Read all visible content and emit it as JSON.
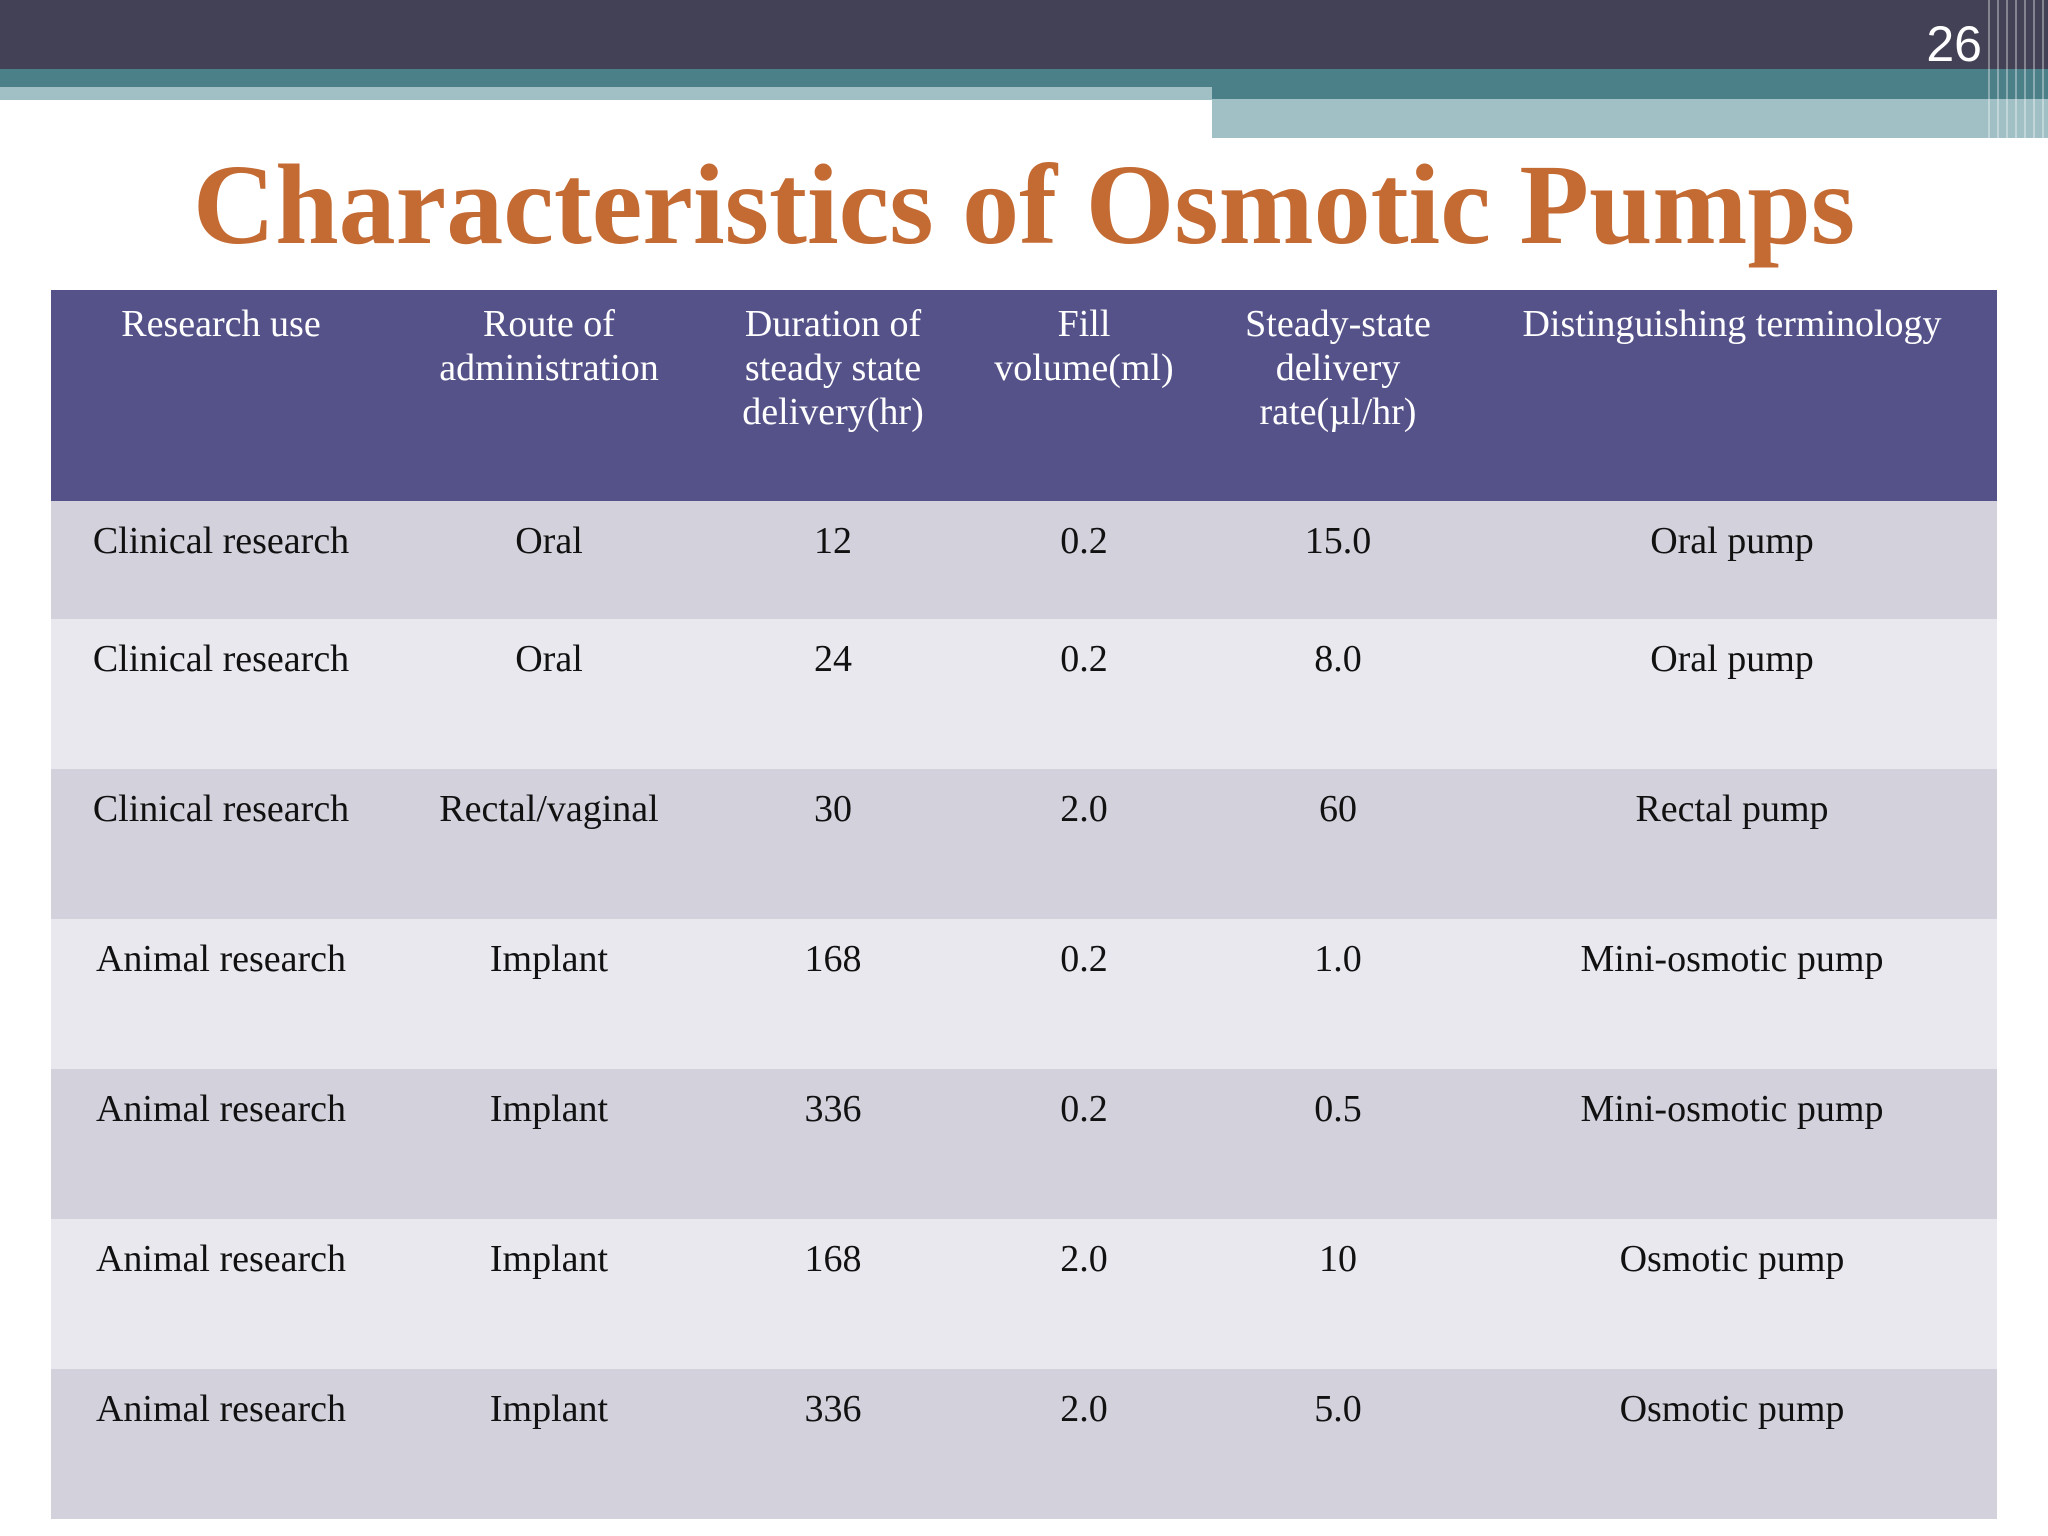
{
  "slide": {
    "page_number": "26",
    "title": "Characteristics of Osmotic Pumps"
  },
  "colors": {
    "header_bar": "#434155",
    "teal_bar": "#4b8088",
    "light_bar": "#a1c0c5",
    "title": "#c46a33",
    "table_header": "#55528a",
    "row_odd": "#d2d1dc",
    "row_even": "#eae8ef"
  },
  "table": {
    "headers": [
      "Research use",
      "Route of administration",
      "Duration of steady state delivery(hr)",
      "Fill volume(ml)",
      "Steady-state delivery rate(µl/hr)",
      "Distinguishing terminology"
    ],
    "rows": [
      [
        "Clinical research",
        "Oral",
        "12",
        "0.2",
        "15.0",
        "Oral pump"
      ],
      [
        "Clinical research",
        "Oral",
        "24",
        "0.2",
        "8.0",
        "Oral pump"
      ],
      [
        "Clinical research",
        "Rectal/vaginal",
        "30",
        "2.0",
        "60",
        "Rectal pump"
      ],
      [
        "Animal research",
        "Implant",
        "168",
        "0.2",
        "1.0",
        "Mini-osmotic pump"
      ],
      [
        "Animal research",
        "Implant",
        "336",
        "0.2",
        "0.5",
        "Mini-osmotic pump"
      ],
      [
        "Animal research",
        "Implant",
        "168",
        "2.0",
        "10",
        "Osmotic pump"
      ],
      [
        "Animal research",
        "Implant",
        "336",
        "2.0",
        "5.0",
        "Osmotic pump"
      ]
    ]
  }
}
